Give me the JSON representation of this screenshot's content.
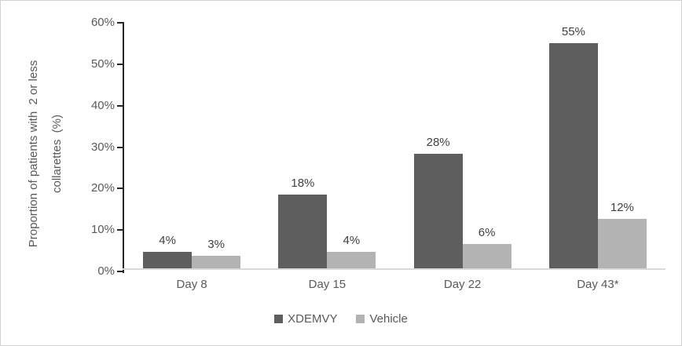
{
  "chart_data": {
    "type": "bar",
    "title": "",
    "y_axis_title_line1": "Proportion of patients with  2 or less",
    "y_axis_title_line2": "collarettes  (%)",
    "categories": [
      "Day 8",
      "Day 15",
      "Day 22",
      "Day 43*"
    ],
    "series": [
      {
        "name": "XDEMVY",
        "color": "#5e5e5e",
        "values": [
          4,
          18,
          28,
          55
        ],
        "labels": [
          "4%",
          "18%",
          "28%",
          "55%"
        ]
      },
      {
        "name": "Vehicle",
        "color": "#b3b3b3",
        "values": [
          3,
          4,
          6,
          12
        ],
        "labels": [
          "3%",
          "4%",
          "6%",
          "12%"
        ]
      }
    ],
    "y_ticks": [
      "60%",
      "50%",
      "40%",
      "30%",
      "20%",
      "10%",
      "0%"
    ],
    "ylim": [
      0,
      60
    ],
    "grid": false,
    "legend_position": "bottom"
  },
  "style": {
    "axis_line_color": "#262626",
    "baseline_color": "#d9d9d9",
    "axis_text_color": "#595959",
    "value_label_color": "#404040",
    "frame_border_color": "#d2d2d2"
  }
}
